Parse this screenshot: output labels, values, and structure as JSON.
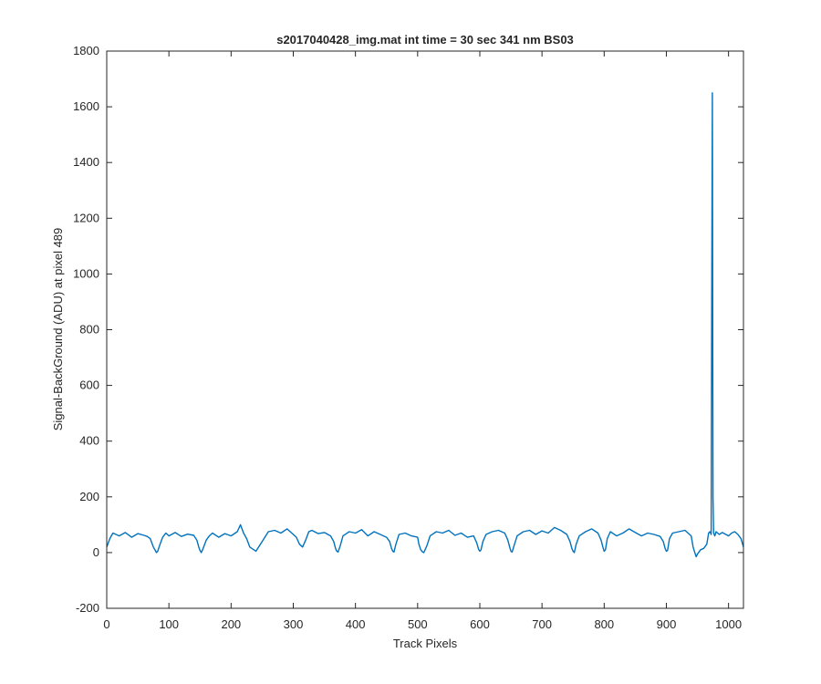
{
  "chart_data": {
    "type": "line",
    "title": "s2017040428_img.mat int time = 30 sec  341 nm BS03",
    "xlabel": "Track Pixels",
    "ylabel": "Signal-BackGround (ADU) at pixel 489",
    "xlim": [
      0,
      1024
    ],
    "ylim": [
      -200,
      1800
    ],
    "xticks": [
      0,
      100,
      200,
      300,
      400,
      500,
      600,
      700,
      800,
      900,
      1000
    ],
    "yticks": [
      -200,
      0,
      200,
      400,
      600,
      800,
      1000,
      1200,
      1400,
      1600,
      1800
    ],
    "grid": false,
    "series_color": "#0072BD",
    "series": [
      {
        "description": "noisy baseline around 60-70 ADU with periodic dips (~0) and one spike",
        "x": [
          0,
          5,
          10,
          15,
          20,
          30,
          40,
          50,
          60,
          65,
          70,
          75,
          78,
          80,
          82,
          85,
          90,
          95,
          100,
          110,
          120,
          130,
          140,
          145,
          148,
          150,
          152,
          155,
          160,
          165,
          170,
          180,
          190,
          200,
          210,
          215,
          220,
          225,
          230,
          240,
          250,
          260,
          270,
          280,
          290,
          300,
          305,
          310,
          315,
          320,
          325,
          330,
          340,
          350,
          360,
          365,
          368,
          370,
          372,
          375,
          380,
          390,
          400,
          410,
          420,
          430,
          440,
          450,
          455,
          458,
          460,
          462,
          465,
          470,
          480,
          490,
          500,
          502,
          505,
          508,
          510,
          515,
          520,
          530,
          540,
          550,
          560,
          570,
          580,
          590,
          595,
          598,
          600,
          602,
          605,
          610,
          620,
          630,
          640,
          645,
          648,
          650,
          652,
          655,
          660,
          670,
          680,
          690,
          700,
          710,
          720,
          730,
          740,
          745,
          748,
          750,
          752,
          755,
          760,
          770,
          780,
          790,
          795,
          798,
          800,
          802,
          805,
          810,
          820,
          830,
          840,
          850,
          860,
          870,
          880,
          890,
          895,
          898,
          900,
          902,
          905,
          910,
          920,
          930,
          940,
          943,
          945,
          948,
          950,
          955,
          960,
          965,
          968,
          970,
          972,
          973,
          974,
          975,
          976,
          978,
          980,
          985,
          990,
          1000,
          1005,
          1010,
          1015,
          1020,
          1024
        ],
        "y": [
          20,
          50,
          70,
          65,
          60,
          72,
          55,
          68,
          62,
          58,
          50,
          20,
          8,
          0,
          5,
          25,
          55,
          70,
          60,
          72,
          58,
          66,
          62,
          45,
          20,
          8,
          0,
          15,
          45,
          60,
          70,
          55,
          68,
          60,
          75,
          100,
          70,
          50,
          20,
          5,
          40,
          75,
          80,
          70,
          85,
          65,
          55,
          30,
          20,
          45,
          75,
          80,
          68,
          72,
          60,
          40,
          15,
          5,
          2,
          20,
          60,
          75,
          70,
          82,
          60,
          75,
          65,
          55,
          40,
          15,
          5,
          2,
          30,
          65,
          70,
          60,
          55,
          30,
          10,
          2,
          0,
          25,
          60,
          75,
          70,
          80,
          62,
          70,
          55,
          60,
          35,
          12,
          5,
          10,
          40,
          65,
          75,
          80,
          70,
          45,
          20,
          5,
          2,
          25,
          60,
          75,
          80,
          65,
          78,
          70,
          90,
          80,
          65,
          40,
          15,
          5,
          0,
          30,
          60,
          75,
          85,
          70,
          45,
          20,
          5,
          10,
          50,
          75,
          60,
          70,
          85,
          72,
          60,
          70,
          65,
          58,
          40,
          15,
          5,
          8,
          50,
          70,
          75,
          80,
          60,
          20,
          5,
          -15,
          -5,
          10,
          15,
          30,
          70,
          75,
          65,
          900,
          1650,
          200,
          70,
          60,
          75,
          65,
          72,
          60,
          70,
          75,
          65,
          50,
          20
        ]
      }
    ]
  }
}
